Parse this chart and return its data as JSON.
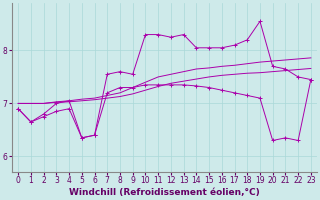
{
  "xlabel": "Windchill (Refroidissement éolien,°C)",
  "xlim": [
    -0.5,
    23.5
  ],
  "ylim": [
    5.7,
    8.9
  ],
  "xticks": [
    0,
    1,
    2,
    3,
    4,
    5,
    6,
    7,
    8,
    9,
    10,
    11,
    12,
    13,
    14,
    15,
    16,
    17,
    18,
    19,
    20,
    21,
    22,
    23
  ],
  "yticks": [
    6,
    7,
    8
  ],
  "background_color": "#ceeaea",
  "line_color": "#aa00aa",
  "lines": [
    {
      "x": [
        0,
        1,
        2,
        3,
        4,
        5,
        6,
        7,
        8,
        9,
        10,
        11,
        12,
        13,
        14,
        15,
        16,
        17,
        18,
        19,
        20,
        21,
        22,
        23
      ],
      "y": [
        6.9,
        6.65,
        6.8,
        7.0,
        7.05,
        6.35,
        6.4,
        7.55,
        7.6,
        7.55,
        8.3,
        8.3,
        8.25,
        8.3,
        8.05,
        8.05,
        8.05,
        8.1,
        8.2,
        8.55,
        7.7,
        7.65,
        7.5,
        7.45
      ],
      "marker": "+"
    },
    {
      "x": [
        0,
        1,
        2,
        3,
        4,
        5,
        6,
        7,
        8,
        9,
        10,
        11,
        12,
        13,
        14,
        15,
        16,
        17,
        18,
        19,
        20,
        21,
        22,
        23
      ],
      "y": [
        7.0,
        7.0,
        7.0,
        7.03,
        7.05,
        7.08,
        7.1,
        7.15,
        7.2,
        7.3,
        7.4,
        7.5,
        7.55,
        7.6,
        7.65,
        7.67,
        7.7,
        7.72,
        7.75,
        7.78,
        7.8,
        7.82,
        7.84,
        7.86
      ],
      "marker": null
    },
    {
      "x": [
        0,
        1,
        2,
        3,
        4,
        5,
        6,
        7,
        8,
        9,
        10,
        11,
        12,
        13,
        14,
        15,
        16,
        17,
        18,
        19,
        20,
        21,
        22,
        23
      ],
      "y": [
        7.0,
        7.0,
        7.0,
        7.02,
        7.03,
        7.05,
        7.07,
        7.1,
        7.13,
        7.18,
        7.25,
        7.32,
        7.38,
        7.42,
        7.46,
        7.5,
        7.53,
        7.55,
        7.57,
        7.58,
        7.6,
        7.62,
        7.64,
        7.66
      ],
      "marker": null
    },
    {
      "x": [
        0,
        1,
        2,
        3,
        4,
        5,
        6,
        7,
        8,
        9,
        10,
        11,
        12,
        13,
        14,
        15,
        16,
        17,
        18,
        19,
        20,
        21,
        22,
        23
      ],
      "y": [
        6.9,
        6.65,
        6.75,
        6.85,
        6.9,
        6.35,
        6.4,
        7.2,
        7.3,
        7.3,
        7.35,
        7.35,
        7.35,
        7.35,
        7.33,
        7.3,
        7.25,
        7.2,
        7.15,
        7.1,
        6.3,
        6.35,
        6.3,
        7.45
      ],
      "marker": "+"
    }
  ],
  "tick_fontsize": 5.5,
  "xlabel_fontsize": 6.5
}
